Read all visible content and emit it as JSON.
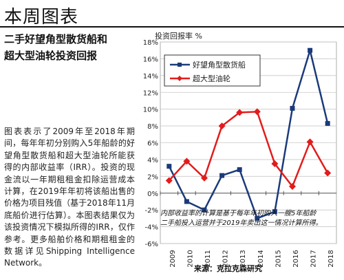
{
  "header": {
    "title": "本周图表",
    "subtitle_line1": "二手好望角型散货船和",
    "subtitle_line2": "超大型油轮投资回报"
  },
  "body_text": "图表表示了2009年至2018年期间，每年年初分别购入5年船龄的好望角型散货船和超大型油轮所能获得的内部收益率（IRR）。投资的现金流以一年期租租金扣除运营成本计算，在2019年年初将该船出售的价格为项目残值（基于2018年11月底船价进行估算）。本图表结果仅为该投资情况下模拟所得的IRR，仅作参考。更多船舶价格和期租租金的数据详见Shipping Intelligence Network。",
  "chart_data": {
    "type": "line",
    "ylabel": "投资回报率 %",
    "x": [
      "2009",
      "2010",
      "2011",
      "2012",
      "2013",
      "2014",
      "2015",
      "2016",
      "2017",
      "2018"
    ],
    "ylim": [
      -6,
      18
    ],
    "yticks": [
      "-6%",
      "-4%",
      "-2%",
      "0%",
      "2%",
      "4%",
      "6%",
      "8%",
      "10%",
      "12%",
      "14%",
      "16%",
      "18%"
    ],
    "grid": true,
    "legend_position": "top-left",
    "series": [
      {
        "name": "好望角型散货船",
        "color": "#1a3a7a",
        "marker": "square",
        "values": [
          3.2,
          -1.0,
          -2.0,
          2.1,
          2.8,
          -3.0,
          -2.2,
          10.1,
          17.0,
          8.3
        ]
      },
      {
        "name": "超大型油轮",
        "color": "#e31b1b",
        "marker": "diamond",
        "values": [
          1.5,
          3.8,
          1.8,
          8.0,
          9.6,
          9.7,
          3.5,
          0.8,
          6.1,
          2.4
        ]
      }
    ],
    "annotation_line1": "内部收益率的计算是基于每年年初购入一艘5年船龄",
    "annotation_line2": "二手船投入运营并于2019年卖出这一情况计算所得。",
    "source": "来源：克拉克森研究"
  }
}
